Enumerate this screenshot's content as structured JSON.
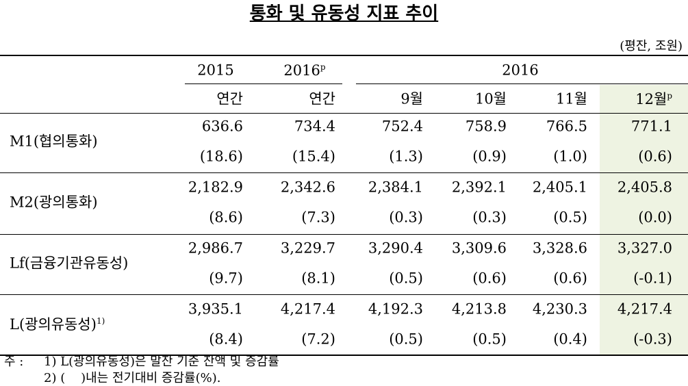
{
  "title": "통화 및 유동성 지표 추이",
  "unit": "(평잔, 조원)",
  "header": {
    "years": [
      {
        "text": "2015"
      },
      {
        "text": "2016",
        "sup": "p"
      },
      {
        "text": "2016"
      }
    ],
    "periods": [
      {
        "text": "연간"
      },
      {
        "text": "연간"
      },
      {
        "text": "9월"
      },
      {
        "text": "10월"
      },
      {
        "text": "11월"
      },
      {
        "text": "12월",
        "sup": "p"
      }
    ]
  },
  "rows": [
    {
      "label": "M1(협의통화)",
      "values": [
        "636.6",
        "734.4",
        "752.4",
        "758.9",
        "766.5",
        "771.1"
      ],
      "changes": [
        "(18.6)",
        "(15.4)",
        "(1.3)",
        "(0.9)",
        "(1.0)",
        "(0.6)"
      ]
    },
    {
      "label": "M2(광의통화)",
      "values": [
        "2,182.9",
        "2,342.6",
        "2,384.1",
        "2,392.1",
        "2,405.1",
        "2,405.8"
      ],
      "changes": [
        "(8.6)",
        "(7.3)",
        "(0.3)",
        "(0.3)",
        "(0.5)",
        "(0.0)"
      ]
    },
    {
      "label": "Lf(금융기관유동성)",
      "values": [
        "2,986.7",
        "3,229.7",
        "3,290.4",
        "3,309.6",
        "3,328.6",
        "3,327.0"
      ],
      "changes": [
        "(9.7)",
        "(8.1)",
        "(0.5)",
        "(0.6)",
        "(0.6)",
        "(-0.1)"
      ]
    },
    {
      "label": "L(광의유동성)",
      "sup": "1)",
      "values": [
        "3,935.1",
        "4,217.4",
        "4,192.3",
        "4,213.8",
        "4,230.3",
        "4,217.4"
      ],
      "changes": [
        "(8.4)",
        "(7.2)",
        "(0.5)",
        "(0.5)",
        "(0.4)",
        "(-0.3)"
      ]
    }
  ],
  "notes": {
    "label": "주 :",
    "items": [
      "1) L(광의유동성)은 말잔 기준 잔액 및 증감률",
      "2) (    )내는 전기대비 증감률(%)."
    ]
  }
}
